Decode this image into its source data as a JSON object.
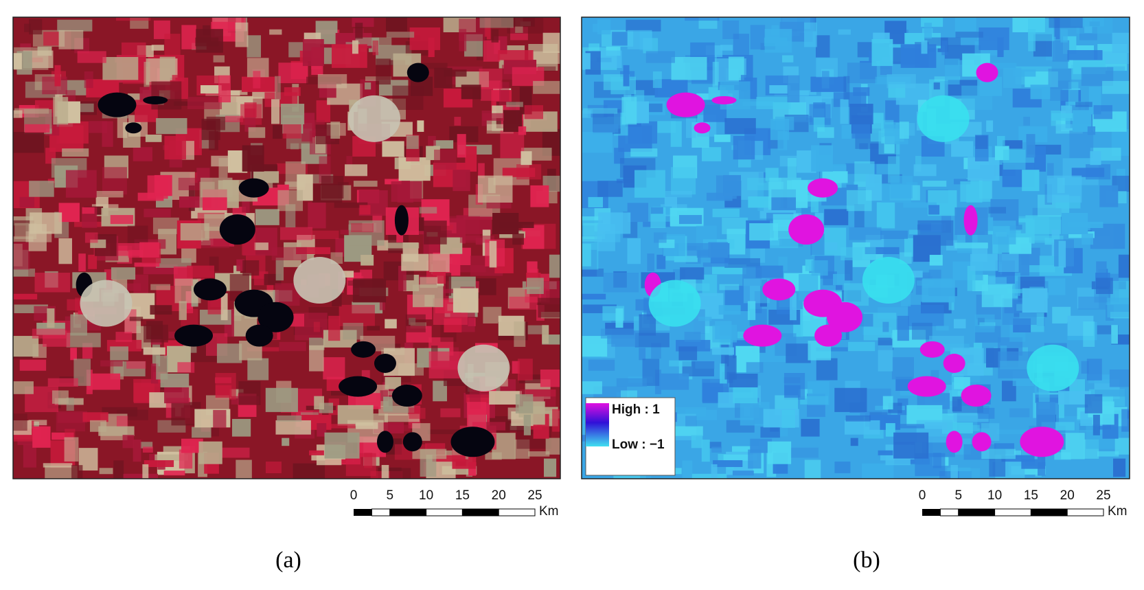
{
  "panels": [
    {
      "label": "(a)",
      "scale_bar": {
        "ticks": [
          0,
          5,
          10,
          15,
          20,
          25
        ],
        "unit": "Km"
      }
    },
    {
      "label": "(b)",
      "scale_bar": {
        "ticks": [
          0,
          5,
          10,
          15,
          20,
          25
        ],
        "unit": "Km"
      },
      "legend": {
        "high": "High : 1",
        "low": "Low : −1"
      }
    }
  ]
}
